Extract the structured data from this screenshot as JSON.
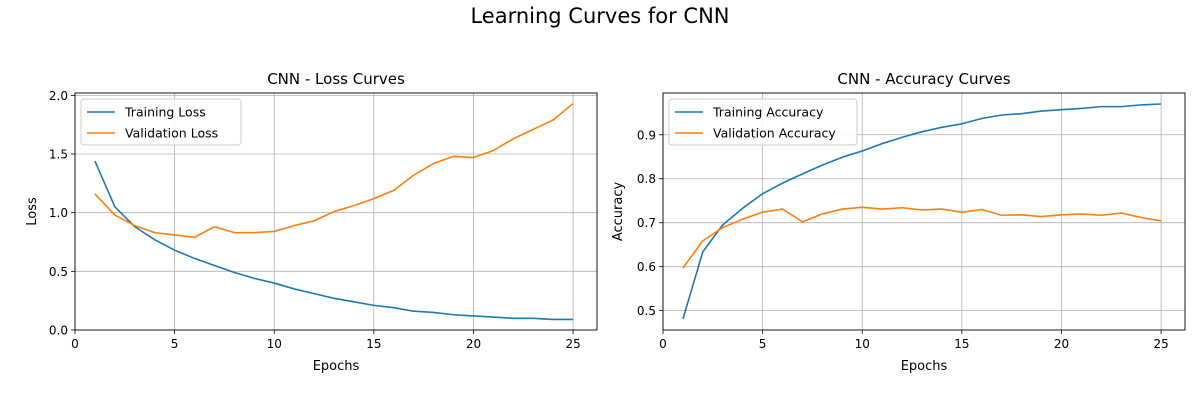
{
  "suptitle": "Learning Curves for CNN",
  "colors": {
    "training": "#1f77b4",
    "validation": "#ff7f0e",
    "grid": "#b0b0b0"
  },
  "chart_data": [
    {
      "type": "line",
      "title": "CNN - Loss Curves",
      "xlabel": "Epochs",
      "ylabel": "Loss",
      "xlim": [
        0,
        26.2
      ],
      "ylim": [
        0,
        2.02
      ],
      "xticks": [
        0,
        5,
        10,
        15,
        20,
        25
      ],
      "yticks": [
        0.0,
        0.5,
        1.0,
        1.5,
        2.0
      ],
      "ytick_labels": [
        "0.0",
        "0.5",
        "1.0",
        "1.5",
        "2.0"
      ],
      "grid": true,
      "legend": "top-left",
      "x": [
        1,
        2,
        3,
        4,
        5,
        6,
        7,
        8,
        9,
        10,
        11,
        12,
        13,
        14,
        15,
        16,
        17,
        18,
        19,
        20,
        21,
        22,
        23,
        24,
        25
      ],
      "series": [
        {
          "name": "Training Loss",
          "values": [
            1.44,
            1.05,
            0.88,
            0.77,
            0.68,
            0.61,
            0.55,
            0.49,
            0.44,
            0.4,
            0.35,
            0.31,
            0.27,
            0.24,
            0.21,
            0.19,
            0.16,
            0.15,
            0.13,
            0.12,
            0.11,
            0.1,
            0.1,
            0.09,
            0.09
          ]
        },
        {
          "name": "Validation Loss",
          "values": [
            1.16,
            0.98,
            0.89,
            0.83,
            0.81,
            0.79,
            0.88,
            0.83,
            0.83,
            0.84,
            0.89,
            0.93,
            1.01,
            1.06,
            1.12,
            1.19,
            1.32,
            1.42,
            1.48,
            1.47,
            1.53,
            1.63,
            1.71,
            1.79,
            1.93
          ]
        }
      ]
    },
    {
      "type": "line",
      "title": "CNN - Accuracy Curves",
      "xlabel": "Epochs",
      "ylabel": "Accuracy",
      "xlim": [
        0,
        26.2
      ],
      "ylim": [
        0.456,
        0.995
      ],
      "xticks": [
        0,
        5,
        10,
        15,
        20,
        25
      ],
      "yticks": [
        0.5,
        0.6,
        0.7,
        0.8,
        0.9
      ],
      "ytick_labels": [
        "0.5",
        "0.6",
        "0.7",
        "0.8",
        "0.9"
      ],
      "grid": true,
      "legend": "top-left",
      "x": [
        1,
        2,
        3,
        4,
        5,
        6,
        7,
        8,
        9,
        10,
        11,
        12,
        13,
        14,
        15,
        16,
        17,
        18,
        19,
        20,
        21,
        22,
        23,
        24,
        25
      ],
      "series": [
        {
          "name": "Training Accuracy",
          "values": [
            0.481,
            0.634,
            0.695,
            0.733,
            0.766,
            0.79,
            0.811,
            0.831,
            0.849,
            0.863,
            0.88,
            0.894,
            0.907,
            0.917,
            0.925,
            0.937,
            0.945,
            0.948,
            0.954,
            0.957,
            0.96,
            0.964,
            0.964,
            0.968,
            0.97
          ]
        },
        {
          "name": "Validation Accuracy",
          "values": [
            0.597,
            0.659,
            0.689,
            0.708,
            0.724,
            0.731,
            0.702,
            0.72,
            0.731,
            0.735,
            0.731,
            0.734,
            0.729,
            0.731,
            0.724,
            0.73,
            0.717,
            0.718,
            0.714,
            0.718,
            0.72,
            0.717,
            0.722,
            0.712,
            0.704
          ]
        }
      ]
    }
  ]
}
